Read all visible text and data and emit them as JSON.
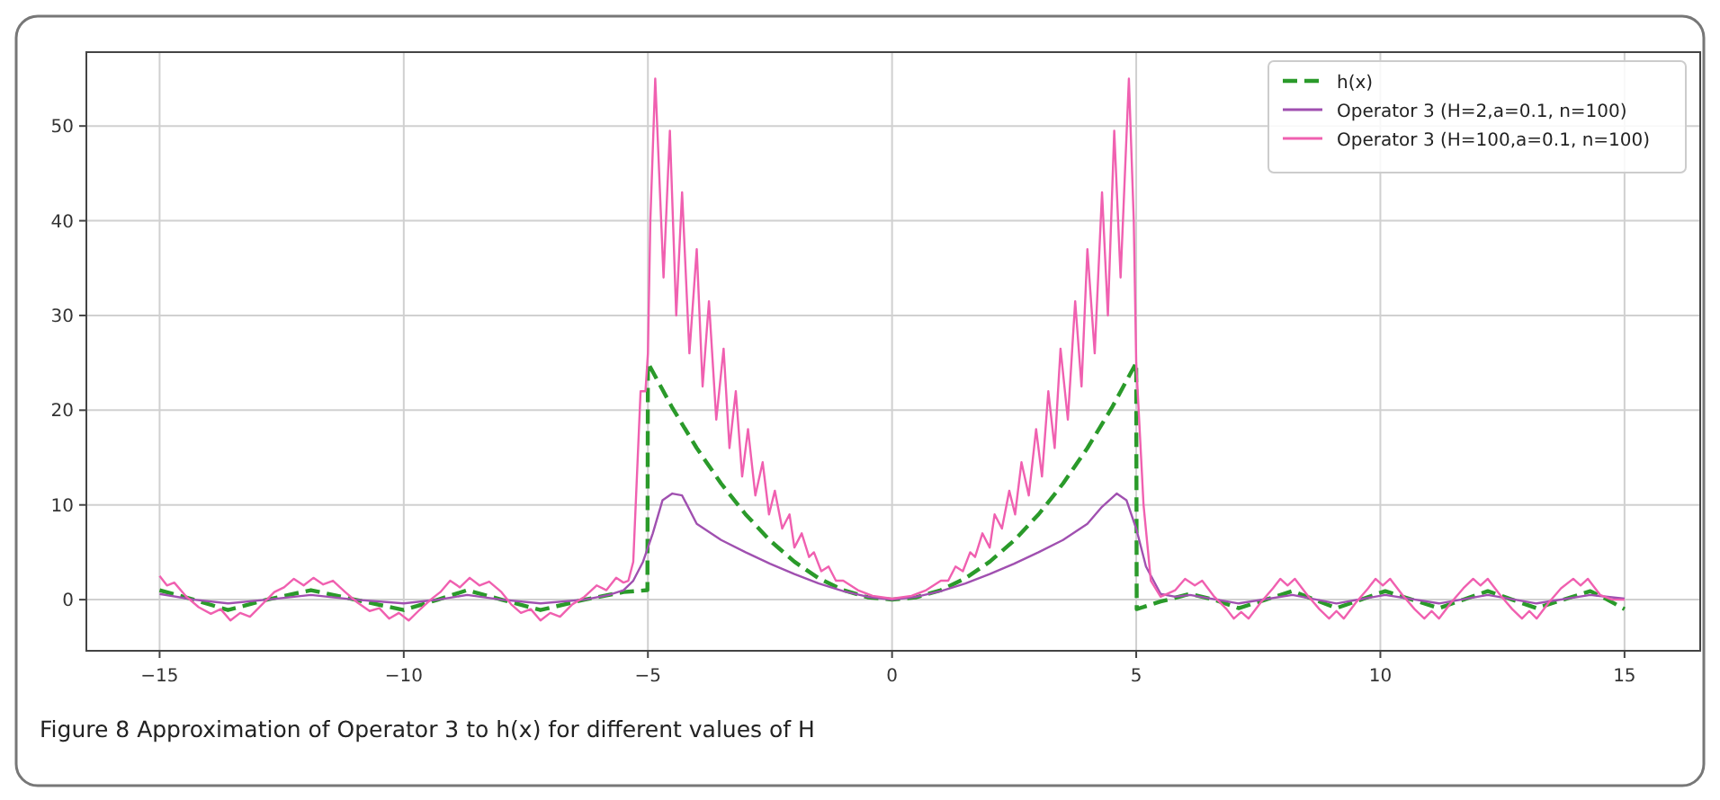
{
  "chart_data": {
    "type": "line",
    "xlim": [
      -16.5,
      16.55
    ],
    "ylim": [
      -5.4,
      57.8
    ],
    "xticks": [
      {
        "value": -15,
        "label": "−15"
      },
      {
        "value": -10,
        "label": "−10"
      },
      {
        "value": -5,
        "label": "−5"
      },
      0,
      5,
      10,
      15
    ],
    "yticks": [
      0,
      10,
      20,
      30,
      40,
      50
    ],
    "grid": true,
    "legend": "top right",
    "annotations": [
      "Figure 8  Approximation of Operator 3 to h(x) for different values of H"
    ],
    "series": [
      {
        "name": "h(x)",
        "color": "#2a9a2a",
        "line_style": "dashed",
        "x": [
          -15,
          -14.3,
          -13.6,
          -12.8,
          -11.9,
          -11,
          -10,
          -9.3,
          -8.7,
          -8,
          -7.2,
          -6.3,
          -5.5,
          -5.01,
          -5,
          -4.5,
          -4,
          -3.5,
          -3,
          -2.5,
          -2,
          -1.5,
          -1,
          -0.5,
          0,
          0.5,
          1,
          1.5,
          2,
          2.5,
          3,
          3.5,
          4,
          4.5,
          5,
          5.01,
          5.5,
          6.1,
          6.6,
          7.1,
          7.65,
          8.2,
          8.65,
          9.1,
          9.6,
          10.1,
          10.65,
          11.2,
          11.7,
          12.2,
          12.7,
          13.2,
          13.75,
          14.3,
          14.65,
          15
        ],
        "values": [
          1.0,
          0,
          -1.1,
          0,
          1.0,
          0,
          -1.1,
          0,
          1.0,
          0,
          -1.1,
          0,
          0.8,
          1.0,
          25,
          20.25,
          16,
          12.25,
          9,
          6.25,
          4,
          2.25,
          1,
          0.25,
          0,
          0.25,
          1,
          2.25,
          4,
          6.25,
          9,
          12.25,
          16,
          20.25,
          25,
          -1.0,
          -0.2,
          0.6,
          0,
          -0.9,
          0,
          0.9,
          0,
          -0.9,
          0,
          0.9,
          0,
          -0.9,
          0,
          0.9,
          0,
          -0.9,
          0,
          0.9,
          0,
          -1.0
        ]
      },
      {
        "name": "Operator 3 (H=2,a=0.1, n=100)",
        "color": "#a050b0",
        "line_style": "solid",
        "x": [
          -15,
          -14.3,
          -13.6,
          -12.8,
          -11.9,
          -11,
          -10,
          -9.3,
          -8.7,
          -8,
          -7.2,
          -6.3,
          -5.8,
          -5.5,
          -5.3,
          -5.1,
          -4.9,
          -4.7,
          -4.5,
          -4.3,
          -4,
          -3.5,
          -3,
          -2.5,
          -2,
          -1.5,
          -1,
          -0.5,
          0,
          0.5,
          1,
          1.5,
          2,
          2.5,
          3,
          3.5,
          4,
          4.3,
          4.6,
          4.8,
          5,
          5.2,
          5.5,
          5.8,
          6.1,
          7.1,
          8.2,
          9.1,
          10.1,
          11.2,
          12.2,
          13.2,
          14.3,
          15
        ],
        "values": [
          0.6,
          0,
          -0.4,
          0,
          0.5,
          0,
          -0.4,
          0,
          0.5,
          0,
          -0.4,
          0,
          0.5,
          1,
          2,
          4,
          7,
          10.5,
          11.2,
          11,
          8,
          6.3,
          5,
          3.8,
          2.7,
          1.7,
          0.9,
          0.3,
          0,
          0.3,
          0.9,
          1.7,
          2.7,
          3.8,
          5,
          6.3,
          8,
          9.8,
          11.2,
          10.5,
          7.5,
          3.5,
          0.6,
          0.3,
          0.5,
          -0.4,
          0.5,
          -0.4,
          0.5,
          -0.4,
          0.5,
          -0.4,
          0.5,
          0.1
        ]
      },
      {
        "name": "Operator 3 (H=100,a=0.1, n=100)",
        "color": "#f060b0",
        "line_style": "solid",
        "x": [
          -15,
          -14.85,
          -14.7,
          -14.45,
          -14.2,
          -13.95,
          -13.75,
          -13.55,
          -13.35,
          -13.15,
          -12.9,
          -12.65,
          -12.45,
          -12.25,
          -12.05,
          -11.85,
          -11.65,
          -11.45,
          -11.2,
          -10.95,
          -10.7,
          -10.5,
          -10.3,
          -10.1,
          -9.9,
          -9.7,
          -9.45,
          -9.25,
          -9.05,
          -8.85,
          -8.65,
          -8.45,
          -8.25,
          -8,
          -7.8,
          -7.6,
          -7.4,
          -7.2,
          -7,
          -6.8,
          -6.55,
          -6.3,
          -6.05,
          -5.85,
          -5.65,
          -5.5,
          -5.4,
          -5.3,
          -5.15,
          -5.05,
          -5,
          -4.95,
          -4.85,
          -4.68,
          -4.55,
          -4.42,
          -4.3,
          -4.15,
          -4,
          -3.88,
          -3.75,
          -3.6,
          -3.45,
          -3.33,
          -3.2,
          -3.07,
          -2.95,
          -2.8,
          -2.65,
          -2.52,
          -2.4,
          -2.25,
          -2.1,
          -2,
          -1.85,
          -1.7,
          -1.6,
          -1.45,
          -1.3,
          -1.15,
          -1,
          -0.7,
          -0.4,
          0,
          0.4,
          0.7,
          1,
          1.15,
          1.3,
          1.45,
          1.6,
          1.7,
          1.85,
          2,
          2.1,
          2.25,
          2.4,
          2.52,
          2.65,
          2.8,
          2.95,
          3.07,
          3.2,
          3.33,
          3.45,
          3.6,
          3.75,
          3.88,
          4,
          4.15,
          4.3,
          4.42,
          4.55,
          4.68,
          4.85,
          4.95,
          5,
          5.05,
          5.15,
          5.3,
          5.5,
          5.8,
          6,
          6.2,
          6.35,
          6.6,
          6.85,
          7,
          7.15,
          7.3,
          7.55,
          7.8,
          7.95,
          8.1,
          8.25,
          8.5,
          8.75,
          8.95,
          9.1,
          9.25,
          9.5,
          9.75,
          9.9,
          10.05,
          10.2,
          10.45,
          10.7,
          10.9,
          11.05,
          11.2,
          11.45,
          11.7,
          11.9,
          12.05,
          12.2,
          12.45,
          12.7,
          12.9,
          13.05,
          13.2,
          13.45,
          13.7,
          13.95,
          14.1,
          14.25,
          14.5,
          14.75,
          15
        ],
        "values": [
          2.5,
          1.5,
          1.8,
          0.3,
          -0.8,
          -1.5,
          -1.0,
          -2.2,
          -1.4,
          -1.8,
          -0.5,
          0.8,
          1.3,
          2.2,
          1.5,
          2.3,
          1.6,
          2.0,
          0.8,
          -0.3,
          -1.2,
          -0.9,
          -2.0,
          -1.4,
          -2.2,
          -1.2,
          0,
          0.8,
          2.0,
          1.3,
          2.3,
          1.5,
          1.9,
          0.8,
          -0.5,
          -1.4,
          -1.0,
          -2.2,
          -1.4,
          -1.8,
          -0.5,
          0.3,
          1.5,
          1.0,
          2.3,
          1.8,
          2.0,
          4,
          22,
          22,
          26,
          40,
          55,
          34,
          49.5,
          30,
          43,
          26,
          37,
          22.5,
          31.5,
          19,
          26.5,
          16,
          22,
          13,
          18,
          11,
          14.5,
          9,
          11.5,
          7.5,
          9,
          5.5,
          7,
          4.5,
          5,
          3,
          3.5,
          2,
          2,
          1,
          0.4,
          0.1,
          0.4,
          1,
          2,
          2,
          3.5,
          3,
          5,
          4.5,
          7,
          5.5,
          9,
          7.5,
          11.5,
          9,
          14.5,
          11,
          18,
          13,
          22,
          16,
          26.5,
          19,
          31.5,
          22.5,
          37,
          26,
          43,
          30,
          49.5,
          34,
          55,
          40,
          25,
          20,
          10,
          2,
          0.3,
          1.0,
          2.2,
          1.5,
          2.0,
          0.3,
          -1.0,
          -2.0,
          -1.3,
          -2.0,
          -0.3,
          1.2,
          2.2,
          1.5,
          2.2,
          0.5,
          -1.0,
          -2.0,
          -1.2,
          -2.0,
          -0.3,
          1.2,
          2.2,
          1.5,
          2.2,
          0.5,
          -1.0,
          -2.0,
          -1.2,
          -2.0,
          -0.3,
          1.2,
          2.2,
          1.5,
          2.2,
          0.5,
          -1.0,
          -2.0,
          -1.2,
          -2.0,
          -0.3,
          1.2,
          2.2,
          1.5,
          2.2,
          0.5,
          0,
          0
        ]
      }
    ]
  }
}
